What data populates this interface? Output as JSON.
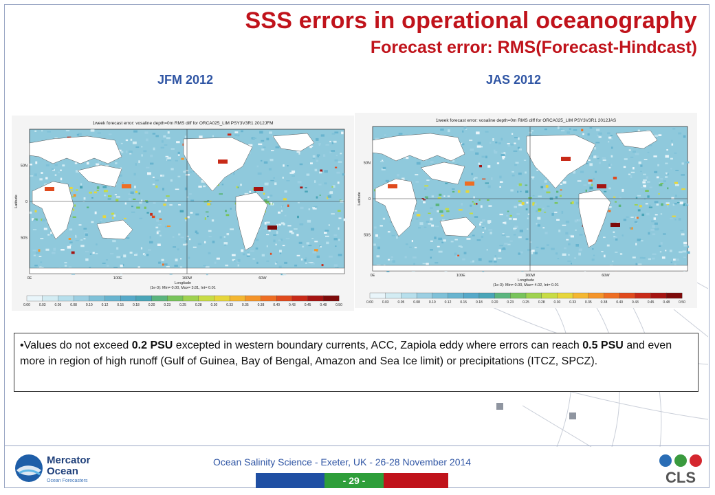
{
  "slide": {
    "title": "SSS errors in operational oceanography",
    "subtitle": "Forecast error: RMS(Forecast-Hindcast)"
  },
  "maps": [
    {
      "period": "JFM 2012",
      "plot_title": "1week forecast error: vosaline depth=0m RMS diff for ORCA025_LIM PSY3V3R1 2012JFM",
      "stats": "(1e-3): Min= 0.00, Max= 3.81, Int= 0.01"
    },
    {
      "period": "JAS 2012",
      "plot_title": "1week forecast error: vosaline depth=0m RMS diff for ORCA025_LIM PSY3V3R1 2012JAS",
      "stats": "(1e-3): Min= 0.00, Max= 4.02, Int= 0.01"
    }
  ],
  "map_common": {
    "ylabel": "Latitude",
    "xlabel": "Longitude",
    "lon_ticks": [
      "0E",
      "100E",
      "160W",
      "60W"
    ],
    "lat_ticks": [
      "50N",
      "0",
      "50S"
    ],
    "colorbar_ticks": [
      "0.00",
      "0.03",
      "0.05",
      "0.08",
      "0.10",
      "0.12",
      "0.15",
      "0.18",
      "0.20",
      "0.23",
      "0.25",
      "0.28",
      "0.30",
      "0.33",
      "0.35",
      "0.38",
      "0.40",
      "0.43",
      "0.45",
      "0.48",
      "0.50"
    ],
    "colorbar_colors": [
      "#e9f5fa",
      "#d3ecf3",
      "#b7dfec",
      "#9ccfe2",
      "#7fc1d8",
      "#68b4cf",
      "#56a9c9",
      "#4aa5b8",
      "#5bb57e",
      "#78c45b",
      "#9fd24f",
      "#c8dc45",
      "#e6d63b",
      "#f4b731",
      "#f49429",
      "#ee6e23",
      "#e04a1d",
      "#c82a18",
      "#a51412",
      "#7d0a0a"
    ]
  },
  "note": {
    "bullet": "•",
    "t1": "Values do not exceed ",
    "b1": "0.2 PSU",
    "t2": " excepted in western boundary currents, ACC, Zapiola eddy where errors can reach ",
    "b2": "0.5 PSU",
    "t3": " and even more in region of high runoff (Gulf of Guinea, Bay of Bengal, Amazon and Sea Ice limit) or precipitations (ITCZ, SPCZ)."
  },
  "footer": {
    "text": "Ocean Salinity Science - Exeter, UK - 26-28 November 2014",
    "page": "- 29 -",
    "left_logo_line1": "Mercator",
    "left_logo_line2": "Ocean",
    "left_logo_tag": "Ocean Forecasters",
    "right_logo": "CLS",
    "bar_colors": [
      "#1f4fa3",
      "#2e9e3a",
      "#c0131b"
    ]
  }
}
